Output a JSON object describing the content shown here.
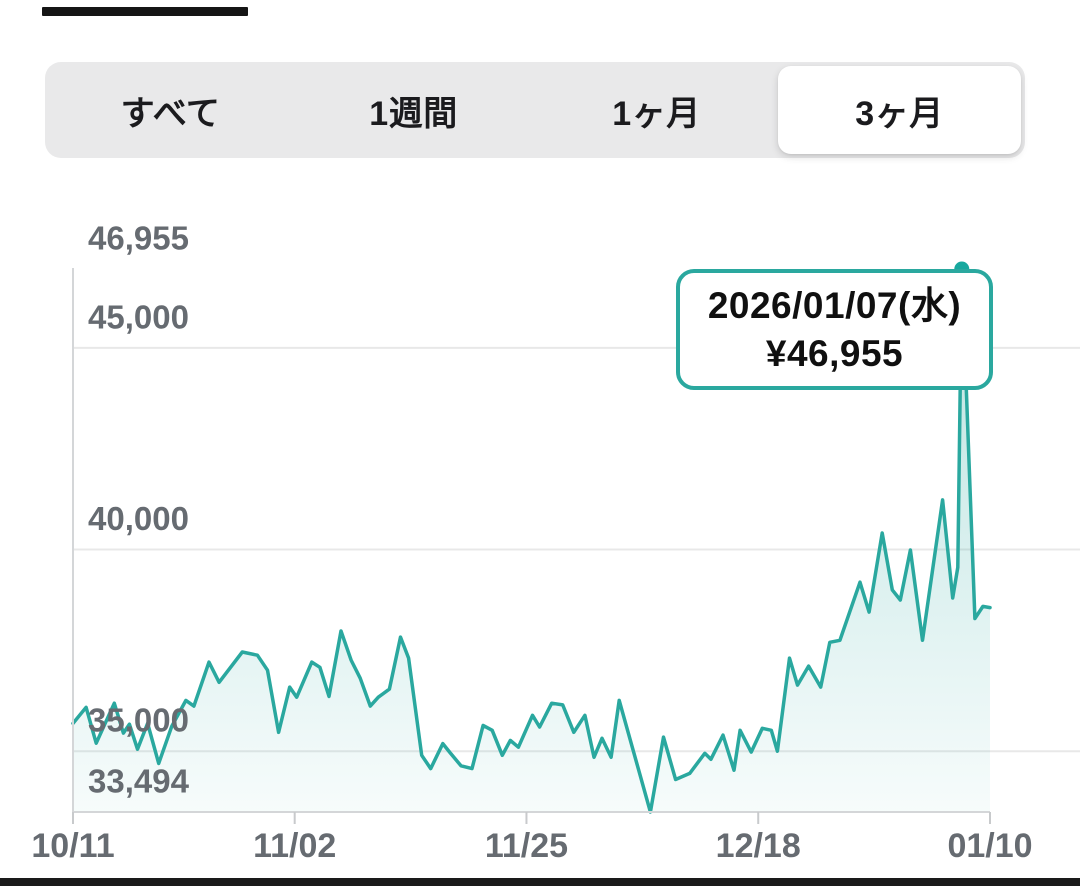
{
  "range_tabs": {
    "items": [
      {
        "label": "すべて",
        "selected": false
      },
      {
        "label": "1週間",
        "selected": false
      },
      {
        "label": "1ヶ月",
        "selected": false
      },
      {
        "label": "3ヶ月",
        "selected": true
      }
    ]
  },
  "tooltip": {
    "date": "2026/01/07(水)",
    "price": "¥46,955"
  },
  "chart_data": {
    "type": "area",
    "x_unit": "days_since_first_date",
    "x_range_days": [
      0,
      91
    ],
    "x_ticks": [
      {
        "day": 0,
        "label": "10/11"
      },
      {
        "day": 22,
        "label": "11/02"
      },
      {
        "day": 45,
        "label": "11/25"
      },
      {
        "day": 68,
        "label": "12/18"
      },
      {
        "day": 91,
        "label": "01/10"
      }
    ],
    "y_axis_labels": [
      {
        "value": 46955,
        "label": "46,955"
      },
      {
        "value": 45000,
        "label": "45,000"
      },
      {
        "value": 40000,
        "label": "40,000"
      },
      {
        "value": 35000,
        "label": "35,000"
      },
      {
        "value": 33494,
        "label": "33,494"
      }
    ],
    "gridline_values": [
      45000,
      40000,
      35000
    ],
    "ylim": [
      33494,
      46955
    ],
    "grid": true,
    "legend": false,
    "series": [
      {
        "name": "price_jpy",
        "points": [
          [
            0.0,
            35690
          ],
          [
            1.3,
            36090
          ],
          [
            2.3,
            35200
          ],
          [
            4.1,
            36190
          ],
          [
            5.0,
            35450
          ],
          [
            5.6,
            35670
          ],
          [
            6.4,
            35050
          ],
          [
            7.4,
            35690
          ],
          [
            8.5,
            34700
          ],
          [
            9.8,
            35620
          ],
          [
            11.2,
            36260
          ],
          [
            12.0,
            36120
          ],
          [
            13.5,
            37210
          ],
          [
            14.5,
            36710
          ],
          [
            16.8,
            37460
          ],
          [
            18.3,
            37380
          ],
          [
            19.3,
            37010
          ],
          [
            20.4,
            35470
          ],
          [
            21.5,
            36590
          ],
          [
            22.2,
            36340
          ],
          [
            23.7,
            37210
          ],
          [
            24.5,
            37080
          ],
          [
            25.4,
            36360
          ],
          [
            26.6,
            37980
          ],
          [
            27.6,
            37260
          ],
          [
            28.5,
            36810
          ],
          [
            29.5,
            36120
          ],
          [
            30.3,
            36340
          ],
          [
            31.4,
            36540
          ],
          [
            32.5,
            37830
          ],
          [
            33.3,
            37310
          ],
          [
            34.6,
            34900
          ],
          [
            35.5,
            34570
          ],
          [
            36.7,
            35190
          ],
          [
            37.4,
            34970
          ],
          [
            38.5,
            34640
          ],
          [
            39.6,
            34570
          ],
          [
            40.7,
            35640
          ],
          [
            41.6,
            35520
          ],
          [
            42.6,
            34900
          ],
          [
            43.4,
            35270
          ],
          [
            44.2,
            35100
          ],
          [
            45.6,
            35890
          ],
          [
            46.3,
            35600
          ],
          [
            47.5,
            36190
          ],
          [
            48.6,
            36150
          ],
          [
            49.7,
            35470
          ],
          [
            50.8,
            35890
          ],
          [
            51.7,
            34850
          ],
          [
            52.5,
            35320
          ],
          [
            53.4,
            34850
          ],
          [
            54.2,
            36260
          ],
          [
            57.3,
            33494
          ],
          [
            58.6,
            35350
          ],
          [
            59.8,
            34300
          ],
          [
            61.2,
            34450
          ],
          [
            62.7,
            34950
          ],
          [
            63.3,
            34800
          ],
          [
            64.5,
            35400
          ],
          [
            65.6,
            34530
          ],
          [
            66.2,
            35520
          ],
          [
            67.3,
            34980
          ],
          [
            68.4,
            35570
          ],
          [
            69.3,
            35520
          ],
          [
            69.9,
            35000
          ],
          [
            71.1,
            37310
          ],
          [
            71.9,
            36640
          ],
          [
            73.0,
            37110
          ],
          [
            74.2,
            36590
          ],
          [
            75.1,
            37700
          ],
          [
            76.1,
            37750
          ],
          [
            78.1,
            39190
          ],
          [
            79.0,
            38450
          ],
          [
            80.3,
            40410
          ],
          [
            81.3,
            39000
          ],
          [
            82.1,
            38750
          ],
          [
            83.1,
            39990
          ],
          [
            84.3,
            37750
          ],
          [
            86.3,
            41230
          ],
          [
            87.3,
            38800
          ],
          [
            87.8,
            39560
          ],
          [
            88.2,
            46955
          ],
          [
            89.5,
            38290
          ],
          [
            90.3,
            38590
          ],
          [
            91.0,
            38560
          ]
        ]
      }
    ],
    "highlight_point": {
      "day": 88.2,
      "value": 46955,
      "date_label": "2026/01/07(水)",
      "price_label": "¥46,955"
    },
    "colors": {
      "line": "#2aa89f",
      "marker": "#17a89e",
      "fill_top": "rgba(42,168,160,0.33)",
      "fill_bottom": "rgba(42,168,160,0.04)",
      "grid": "#e8e8e8",
      "axis": "#d4d6d8",
      "tick": "#c8cacc",
      "axis_label": "#666b71",
      "tooltip_border": "#2aa89f"
    }
  }
}
